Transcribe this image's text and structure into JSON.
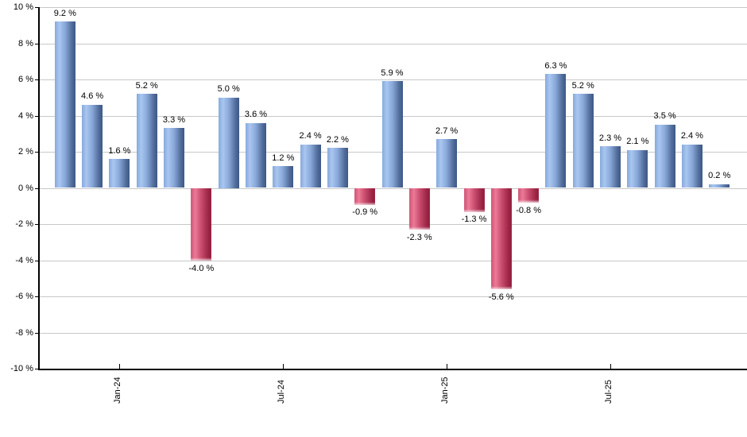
{
  "chart_data": {
    "type": "bar",
    "title": "",
    "xlabel": "",
    "ylabel": "",
    "ylim": [
      -10,
      10
    ],
    "grid": true,
    "legend": false,
    "background": "#ffffff",
    "y_ticks": [
      "10 %",
      "8 %",
      "6 %",
      "4 %",
      "2 %",
      "0 %",
      "-2 %",
      "-4 %",
      "-6 %",
      "-8 %",
      "-10 %"
    ],
    "y_tick_values": [
      10,
      8,
      6,
      4,
      2,
      0,
      -2,
      -4,
      -6,
      -8,
      -10
    ],
    "x_ticks": [
      {
        "label": "Jan-24",
        "bar_index": 2
      },
      {
        "label": "Jul-24",
        "bar_index": 8
      },
      {
        "label": "Jan-25",
        "bar_index": 14
      },
      {
        "label": "Jul-25",
        "bar_index": 20
      }
    ],
    "values": [
      9.2,
      4.6,
      1.6,
      5.2,
      3.3,
      -4.0,
      5.0,
      3.6,
      1.2,
      2.4,
      2.2,
      -0.9,
      5.9,
      -2.3,
      2.7,
      -1.3,
      -5.6,
      -0.8,
      6.3,
      5.2,
      2.3,
      2.1,
      3.5,
      2.4,
      0.2
    ],
    "bar_labels": [
      "9.2 %",
      "4.6 %",
      "1.6 %",
      "5.2 %",
      "3.3 %",
      "-4.0 %",
      "5.0 %",
      "3.6 %",
      "1.2 %",
      "2.4 %",
      "2.2 %",
      "-0.9 %",
      "5.9 %",
      "-2.3 %",
      "2.7 %",
      "-1.3 %",
      "-5.6 %",
      "-0.8 %",
      "6.3 %",
      "5.2 %",
      "2.3 %",
      "2.1 %",
      "3.5 %",
      "2.4 %",
      "0.2 %"
    ],
    "colors": {
      "positive_bar_light": "#a9c6f1",
      "positive_bar_dark": "#3d5886",
      "negative_bar_light": "#ec7a96",
      "negative_bar_dark": "#8e1b3a",
      "gridline": "#c8c8c8",
      "axis": "#000000",
      "text": "#000000"
    }
  }
}
